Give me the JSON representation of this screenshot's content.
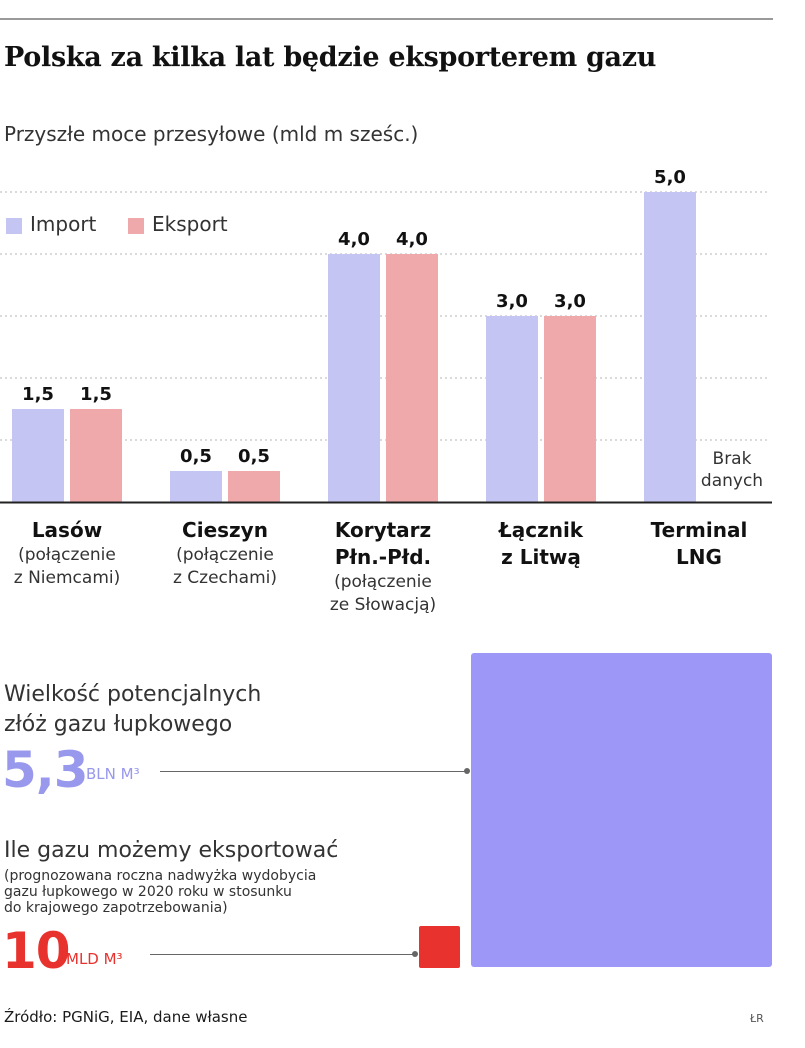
{
  "title": "Polska za kilka lat będzie eksporterem gazu",
  "chart_data": {
    "type": "bar",
    "title": "Przyszłe moce przesyłowe (mld m sześc.)",
    "ylim": [
      0,
      5.5
    ],
    "grid": true,
    "legend_position": "top-left",
    "series": [
      {
        "name": "Import",
        "color": "#c5c5f4",
        "values": [
          1.5,
          0.5,
          4.0,
          3.0,
          5.0
        ]
      },
      {
        "name": "Eksport",
        "color": "#f0a9ab",
        "values": [
          1.5,
          0.5,
          4.0,
          3.0,
          null
        ]
      }
    ],
    "value_labels": {
      "Import": [
        "1,5",
        "0,5",
        "4,0",
        "3,0",
        "5,0"
      ],
      "Eksport": [
        "1,5",
        "0,5",
        "4,0",
        "3,0",
        ""
      ]
    },
    "categories": [
      {
        "name": [
          "Lasów"
        ],
        "sub": [
          "(połączenie",
          "z Niemcami)"
        ]
      },
      {
        "name": [
          "Cieszyn"
        ],
        "sub": [
          "(połączenie",
          "z Czechami)"
        ]
      },
      {
        "name": [
          "Korytarz",
          "Płn.-Płd."
        ],
        "sub": [
          "(połączenie",
          "ze Słowacją)"
        ]
      },
      {
        "name": [
          "Łącznik",
          "z Litwą"
        ],
        "sub": []
      },
      {
        "name": [
          "Terminal",
          "LNG"
        ],
        "sub": []
      }
    ],
    "no_data_note": [
      "Brak",
      "danych"
    ]
  },
  "shale": {
    "label_line1": "Wielkość potencjalnych",
    "label_line2": "złóż gazu łupkowego",
    "value": "5,3",
    "unit": "BLN M³",
    "color": "#9d98f8"
  },
  "export": {
    "label": "Ile gazu możemy eksportować",
    "note_line1": "(prognozowana roczna nadwyżka wydobycia",
    "note_line2": "gazu łupkowego w 2020 roku w stosunku",
    "note_line3": "do krajowego zapotrzebowania)",
    "value": "10",
    "unit": "MLD M³",
    "color": "#e8322e"
  },
  "source": "Źródło: PGNiG, EIA, dane własne",
  "author": "ŁR"
}
